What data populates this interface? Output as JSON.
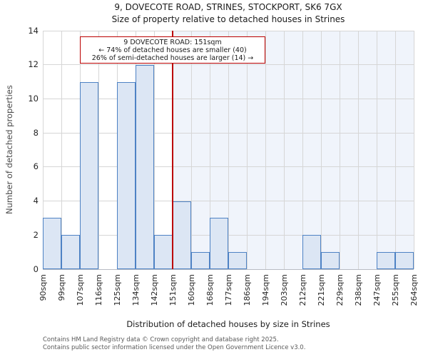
{
  "chart_data": {
    "type": "bar",
    "title": "9, DOVECOTE ROAD, STRINES, STOCKPORT, SK6 7GX",
    "subtitle": "Size of property relative to detached houses in Strines",
    "xlabel": "Distribution of detached houses by size in Strines",
    "ylabel": "Number of detached properties",
    "categories": [
      "90sqm",
      "99sqm",
      "107sqm",
      "116sqm",
      "125sqm",
      "134sqm",
      "142sqm",
      "151sqm",
      "160sqm",
      "168sqm",
      "177sqm",
      "186sqm",
      "194sqm",
      "203sqm",
      "212sqm",
      "221sqm",
      "229sqm",
      "238sqm",
      "247sqm",
      "255sqm",
      "264sqm"
    ],
    "values": [
      3,
      2,
      11,
      0,
      11,
      12,
      2,
      4,
      1,
      3,
      1,
      0,
      0,
      0,
      2,
      1,
      0,
      0,
      1,
      1
    ],
    "yticks": [
      0,
      2,
      4,
      6,
      8,
      10,
      12,
      14
    ],
    "ylim": [
      0,
      14
    ],
    "grid": true,
    "legend": "none",
    "marker": {
      "value": "151sqm",
      "tick_index": 7,
      "shaded_side": "right"
    },
    "annotation": {
      "title": "9 DOVECOTE ROAD: 151sqm",
      "smaller": "← 74% of detached houses are smaller (40)",
      "larger": "26% of semi-detached houses are larger (14) →"
    }
  },
  "footer": {
    "line1": "Contains HM Land Registry data © Crown copyright and database right 2025.",
    "line2": "Contains public sector information licensed under the Open Government Licence v3.0."
  },
  "colors": {
    "bar_fill": "#dce6f4",
    "bar_edge": "#4e82c4",
    "marker_line": "#bb0000",
    "annotation_border": "#bb0000",
    "shaded_region": "#f0f4fb",
    "gridline": "#d6d6d6",
    "axis_line": "#b8bcc4"
  }
}
